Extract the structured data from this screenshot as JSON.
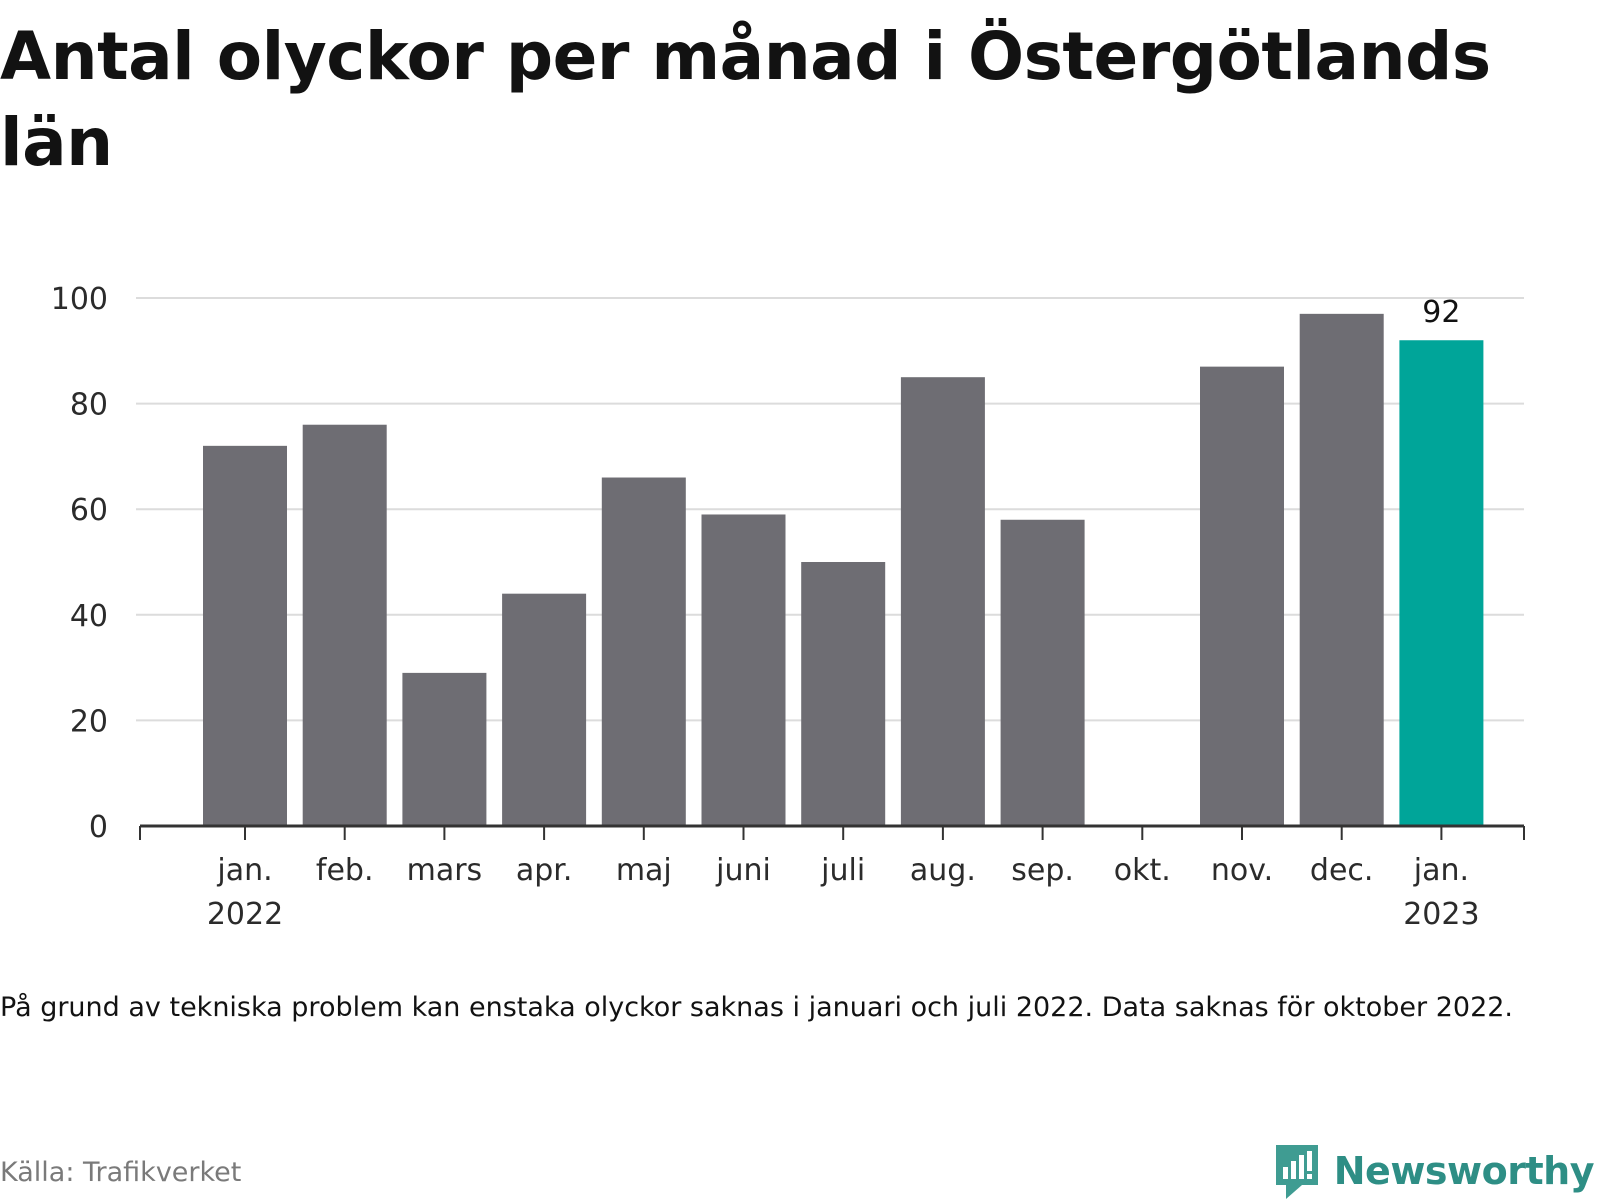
{
  "title": "Antal olyckor per månad i Östergötlands län",
  "footnote": "På grund av tekniska problem kan enstaka olyckor saknas i januari och juli 2022. Data saknas för oktober 2022.",
  "source": "Källa: Trafikverket",
  "brand": "Newsworthy",
  "colors": {
    "bar": "#6e6d73",
    "highlight": "#00a599",
    "grid": "#dcdcdc",
    "axis": "#333333",
    "brand": "#2e8e85"
  },
  "chart_data": {
    "type": "bar",
    "categories": [
      {
        "label": "jan.",
        "sublabel": "2022"
      },
      {
        "label": "feb.",
        "sublabel": ""
      },
      {
        "label": "mars",
        "sublabel": ""
      },
      {
        "label": "apr.",
        "sublabel": ""
      },
      {
        "label": "maj",
        "sublabel": ""
      },
      {
        "label": "juni",
        "sublabel": ""
      },
      {
        "label": "juli",
        "sublabel": ""
      },
      {
        "label": "aug.",
        "sublabel": ""
      },
      {
        "label": "sep.",
        "sublabel": ""
      },
      {
        "label": "okt.",
        "sublabel": ""
      },
      {
        "label": "nov.",
        "sublabel": ""
      },
      {
        "label": "dec.",
        "sublabel": ""
      },
      {
        "label": "jan.",
        "sublabel": "2023"
      }
    ],
    "values": [
      72,
      76,
      29,
      44,
      66,
      59,
      50,
      85,
      58,
      null,
      87,
      97,
      92
    ],
    "highlight_index": 12,
    "data_labels": [
      "",
      "",
      "",
      "",
      "",
      "",
      "",
      "",
      "",
      "",
      "",
      "",
      "92"
    ],
    "yticks": [
      0,
      20,
      40,
      60,
      80,
      100
    ],
    "ylim": [
      0,
      100
    ],
    "grid": true
  }
}
